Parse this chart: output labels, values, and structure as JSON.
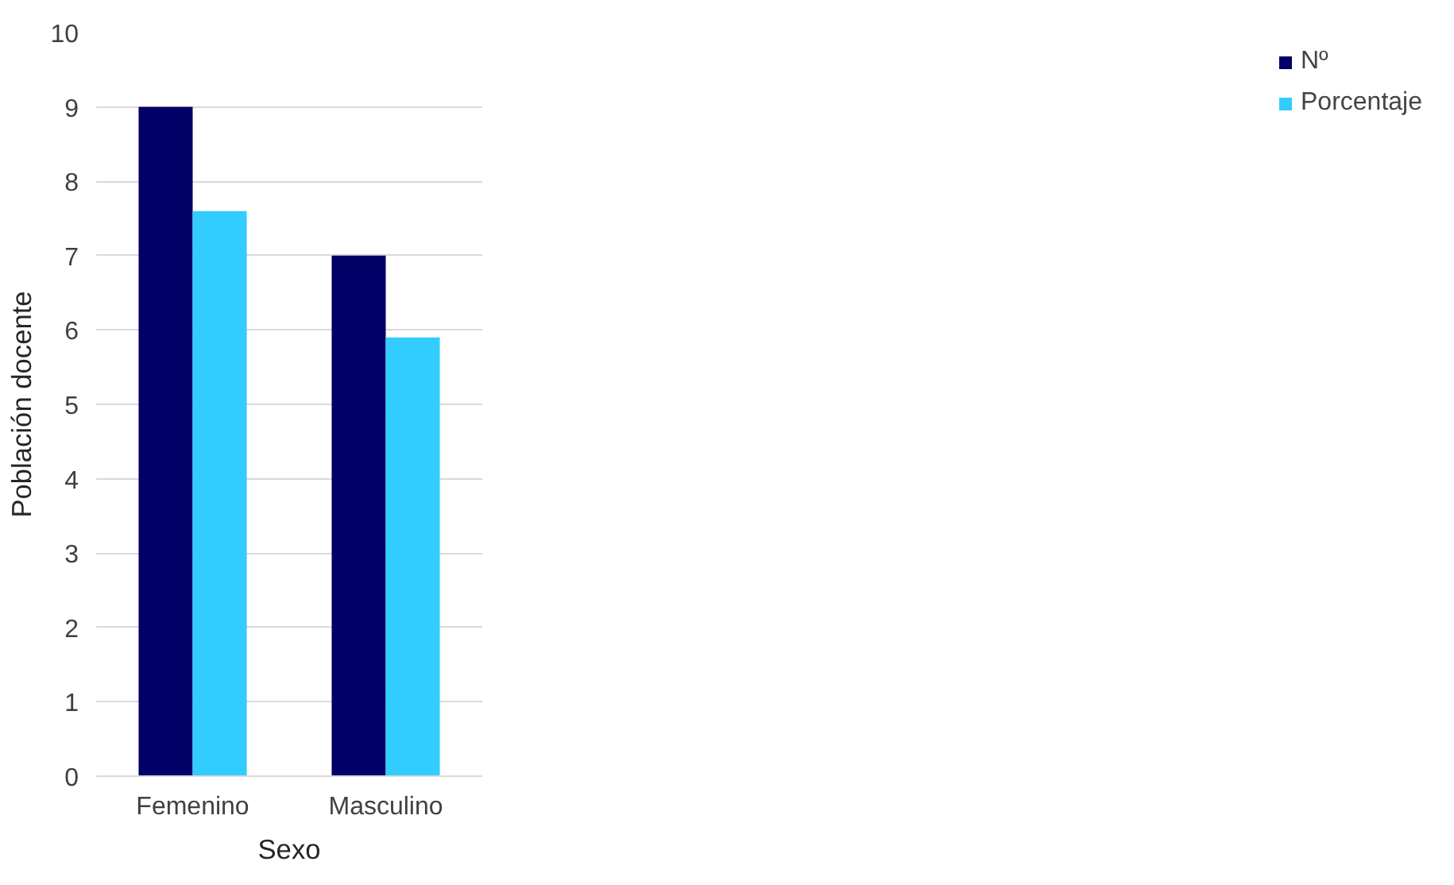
{
  "chart_data": {
    "type": "bar",
    "xlabel": "Sexo",
    "ylabel": "Población docente",
    "categories": [
      "Femenino",
      "Masculino"
    ],
    "series": [
      {
        "name": "Nº",
        "color": "#000066",
        "values": [
          9,
          7
        ]
      },
      {
        "name": "Porcentaje",
        "color": "#33ccff",
        "values": [
          7.6,
          5.9
        ]
      }
    ],
    "ylim": [
      0,
      10
    ],
    "yticks": [
      0,
      1,
      2,
      3,
      4,
      5,
      6,
      7,
      8,
      9,
      10
    ],
    "grid": "y",
    "legend": "right"
  }
}
